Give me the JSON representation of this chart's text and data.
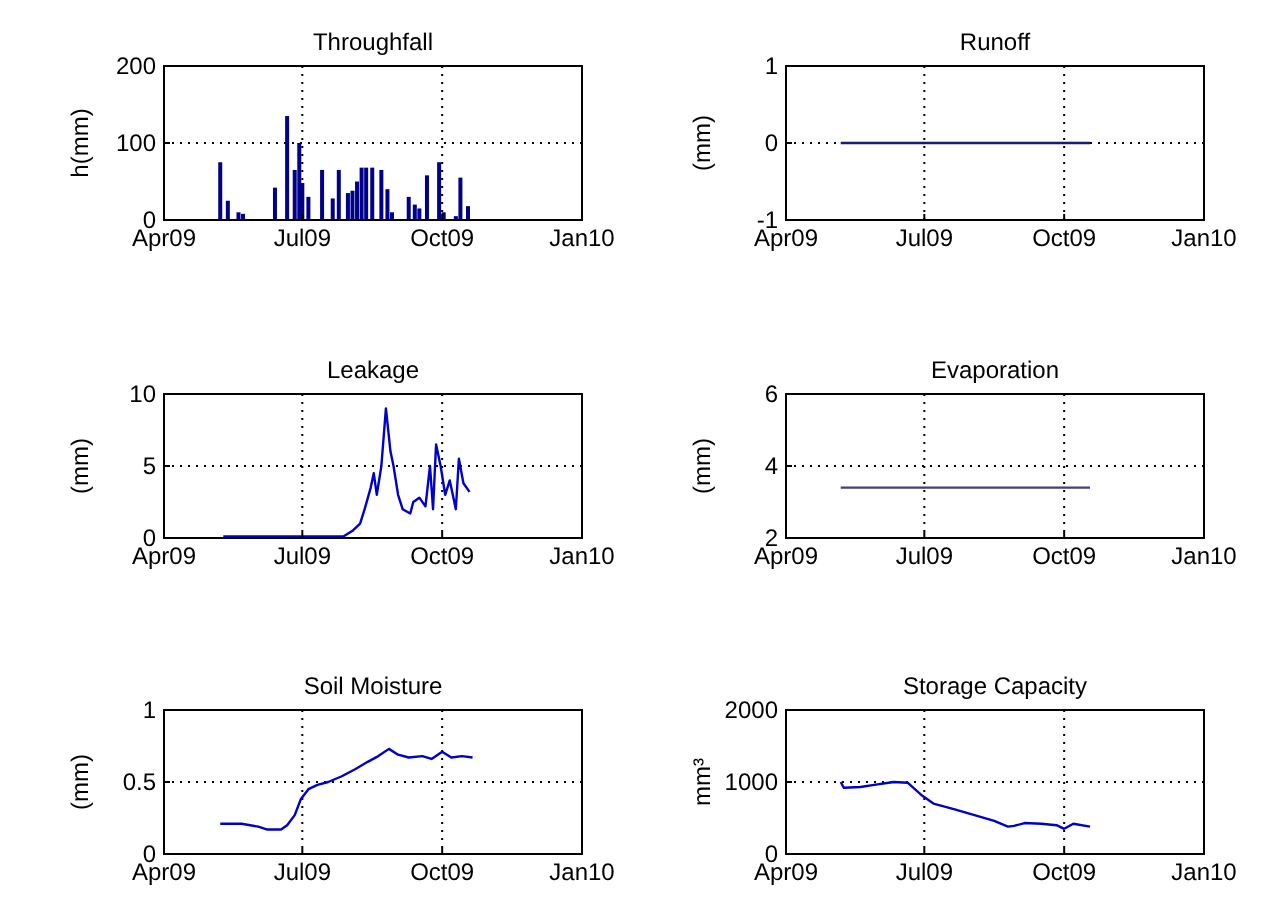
{
  "chart_data": [
    {
      "type": "bar",
      "title": "Throughfall",
      "ylabel": "h(mm)",
      "x": [
        "2009-05-08",
        "2009-05-13",
        "2009-05-20",
        "2009-05-23",
        "2009-06-13",
        "2009-06-21",
        "2009-06-26",
        "2009-06-29",
        "2009-07-01",
        "2009-07-05",
        "2009-07-14",
        "2009-07-21",
        "2009-07-25",
        "2009-07-31",
        "2009-08-03",
        "2009-08-06",
        "2009-08-09",
        "2009-08-12",
        "2009-08-16",
        "2009-08-22",
        "2009-08-26",
        "2009-08-29",
        "2009-09-09",
        "2009-09-13",
        "2009-09-16",
        "2009-09-21",
        "2009-09-29",
        "2009-10-02",
        "2009-10-10",
        "2009-10-13",
        "2009-10-18"
      ],
      "series": [
        {
          "color": "#00008b",
          "values": [
            75,
            25,
            10,
            8,
            42,
            135,
            65,
            100,
            48,
            30,
            65,
            28,
            65,
            35,
            38,
            50,
            68,
            68,
            68,
            65,
            40,
            10,
            30,
            20,
            15,
            58,
            75,
            10,
            5,
            55,
            18
          ]
        }
      ],
      "xlim": [
        "2009-04-01",
        "2010-01-01"
      ],
      "xticks": [
        {
          "value": "2009-04-01",
          "label": "Apr09"
        },
        {
          "value": "2009-07-01",
          "label": "Jul09"
        },
        {
          "value": "2009-10-01",
          "label": "Oct09"
        },
        {
          "value": "2010-01-01",
          "label": "Jan10"
        }
      ],
      "ylim": [
        0,
        200
      ],
      "yticks": [
        0,
        100,
        200
      ],
      "grid": true
    },
    {
      "type": "line",
      "title": "Runoff",
      "ylabel": "(mm)",
      "x": [
        "2009-05-07",
        "2009-07-01",
        "2009-10-01",
        "2009-10-18"
      ],
      "series": [
        {
          "color": "#1a1a6e",
          "values": [
            0,
            0,
            0,
            0
          ]
        }
      ],
      "xlim": [
        "2009-04-01",
        "2010-01-01"
      ],
      "xticks": [
        {
          "value": "2009-04-01",
          "label": "Apr09"
        },
        {
          "value": "2009-07-01",
          "label": "Jul09"
        },
        {
          "value": "2009-10-01",
          "label": "Oct09"
        },
        {
          "value": "2010-01-01",
          "label": "Jan10"
        }
      ],
      "ylim": [
        -1,
        1
      ],
      "yticks": [
        -1,
        0,
        1
      ],
      "grid": true
    },
    {
      "type": "line",
      "title": "Leakage",
      "ylabel": "(mm)",
      "x": [
        "2009-05-10",
        "2009-07-28",
        "2009-08-03",
        "2009-08-08",
        "2009-08-11",
        "2009-08-15",
        "2009-08-17",
        "2009-08-19",
        "2009-08-22",
        "2009-08-25",
        "2009-08-28",
        "2009-08-30",
        "2009-09-02",
        "2009-09-05",
        "2009-09-10",
        "2009-09-12",
        "2009-09-16",
        "2009-09-20",
        "2009-09-23",
        "2009-09-25",
        "2009-09-27",
        "2009-09-30",
        "2009-10-03",
        "2009-10-06",
        "2009-10-10",
        "2009-10-12",
        "2009-10-15",
        "2009-10-19"
      ],
      "series": [
        {
          "color": "#0000cc",
          "values": [
            0.1,
            0.1,
            0.5,
            1,
            2,
            3.5,
            4.5,
            3,
            5,
            9,
            6,
            5,
            3,
            2,
            1.7,
            2.5,
            2.8,
            2.2,
            5,
            2,
            6.5,
            5,
            3,
            4,
            2,
            5.5,
            3.8,
            3.2
          ]
        }
      ],
      "xlim": [
        "2009-04-01",
        "2010-01-01"
      ],
      "xticks": [
        {
          "value": "2009-04-01",
          "label": "Apr09"
        },
        {
          "value": "2009-07-01",
          "label": "Jul09"
        },
        {
          "value": "2009-10-01",
          "label": "Oct09"
        },
        {
          "value": "2010-01-01",
          "label": "Jan10"
        }
      ],
      "ylim": [
        0,
        10
      ],
      "yticks": [
        0,
        5,
        10
      ],
      "grid": true
    },
    {
      "type": "line",
      "title": "Evaporation",
      "ylabel": "(mm)",
      "x": [
        "2009-05-07",
        "2009-07-01",
        "2009-10-01",
        "2009-10-18"
      ],
      "series": [
        {
          "color": "#4b3b78",
          "values": [
            3.4,
            3.4,
            3.4,
            3.4
          ]
        }
      ],
      "xlim": [
        "2009-04-01",
        "2010-01-01"
      ],
      "xticks": [
        {
          "value": "2009-04-01",
          "label": "Apr09"
        },
        {
          "value": "2009-07-01",
          "label": "Jul09"
        },
        {
          "value": "2009-10-01",
          "label": "Oct09"
        },
        {
          "value": "2010-01-01",
          "label": "Jan10"
        }
      ],
      "ylim": [
        2,
        6
      ],
      "yticks": [
        2,
        4,
        6
      ],
      "grid": true
    },
    {
      "type": "line",
      "title": "Soil Moisture",
      "ylabel": "(mm)",
      "x": [
        "2009-05-08",
        "2009-05-22",
        "2009-06-02",
        "2009-06-08",
        "2009-06-17",
        "2009-06-21",
        "2009-06-26",
        "2009-06-30",
        "2009-07-05",
        "2009-07-11",
        "2009-07-18",
        "2009-07-27",
        "2009-08-05",
        "2009-08-13",
        "2009-08-20",
        "2009-08-27",
        "2009-09-02",
        "2009-09-09",
        "2009-09-18",
        "2009-09-24",
        "2009-10-01",
        "2009-10-07",
        "2009-10-14",
        "2009-10-21"
      ],
      "series": [
        {
          "color": "#0000cc",
          "values": [
            0.21,
            0.21,
            0.19,
            0.17,
            0.17,
            0.2,
            0.27,
            0.38,
            0.45,
            0.48,
            0.5,
            0.54,
            0.59,
            0.64,
            0.68,
            0.73,
            0.69,
            0.67,
            0.68,
            0.66,
            0.71,
            0.67,
            0.68,
            0.67
          ]
        }
      ],
      "xlim": [
        "2009-04-01",
        "2010-01-01"
      ],
      "xticks": [
        {
          "value": "2009-04-01",
          "label": "Apr09"
        },
        {
          "value": "2009-07-01",
          "label": "Jul09"
        },
        {
          "value": "2009-10-01",
          "label": "Oct09"
        },
        {
          "value": "2010-01-01",
          "label": "Jan10"
        }
      ],
      "ylim": [
        0,
        1
      ],
      "yticks": [
        0,
        0.5,
        1
      ],
      "grid": true
    },
    {
      "type": "line",
      "title": "Storage Capacity",
      "ylabel": "mm³",
      "x": [
        "2009-05-07",
        "2009-05-09",
        "2009-05-20",
        "2009-05-29",
        "2009-06-11",
        "2009-06-20",
        "2009-06-29",
        "2009-07-07",
        "2009-07-21",
        "2009-08-03",
        "2009-08-16",
        "2009-08-25",
        "2009-08-29",
        "2009-09-05",
        "2009-09-16",
        "2009-09-26",
        "2009-10-01",
        "2009-10-07",
        "2009-10-18"
      ],
      "series": [
        {
          "color": "#0000cc",
          "values": [
            1000,
            920,
            930,
            960,
            1000,
            990,
            820,
            700,
            620,
            540,
            460,
            380,
            390,
            430,
            420,
            400,
            350,
            420,
            380
          ]
        }
      ],
      "xlim": [
        "2009-04-01",
        "2010-01-01"
      ],
      "xticks": [
        {
          "value": "2009-04-01",
          "label": "Apr09"
        },
        {
          "value": "2009-07-01",
          "label": "Jul09"
        },
        {
          "value": "2009-10-01",
          "label": "Oct09"
        },
        {
          "value": "2010-01-01",
          "label": "Jan10"
        }
      ],
      "ylim": [
        0,
        2000
      ],
      "yticks": [
        0,
        1000,
        2000
      ],
      "grid": true
    }
  ]
}
